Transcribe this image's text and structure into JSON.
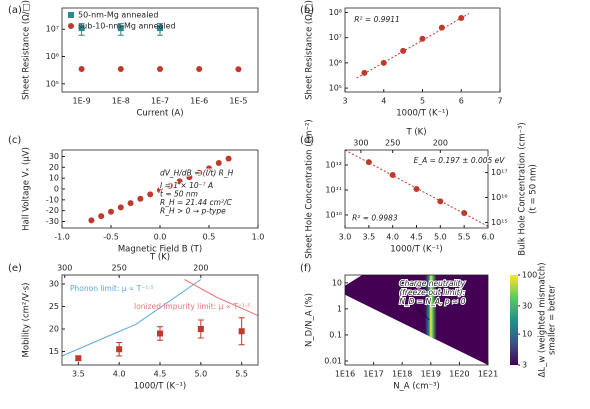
{
  "chart_data": [
    {
      "type": "scatter",
      "panel_label": "(a)",
      "categories": [
        "1E-9",
        "1E-8",
        "1E-7",
        "1E-6",
        "1E-5"
      ],
      "xlabel": "Current (A)",
      "ylabel": "Sheet Resistance (Ω/□)",
      "yscale": "log",
      "ylim": [
        50000,
        60000000
      ],
      "yticks": [
        {
          "value": 100000,
          "label": "10⁵"
        },
        {
          "value": 1000000,
          "label": "10⁶"
        },
        {
          "value": 10000000,
          "label": "10⁷"
        }
      ],
      "legend": "upper left",
      "series": [
        {
          "name": "50-nm-Mg annealed",
          "color": "#2a8a8f",
          "marker": "square",
          "values": [
            11000000,
            11000000,
            11000000,
            null,
            null
          ],
          "errors": [
            5000000,
            5000000,
            5000000,
            null,
            null
          ]
        },
        {
          "name": "sub-10-nm-Mg annealed",
          "color": "#c0392b",
          "marker": "circle",
          "values": [
            350000,
            350000,
            350000,
            350000,
            340000
          ]
        }
      ]
    },
    {
      "type": "scatter",
      "panel_label": "(b)",
      "xlabel": "1000/T (K⁻¹)",
      "ylabel": "Sheet Resistance (Ω/□)",
      "xlim": [
        3,
        7
      ],
      "xticks": [
        3,
        4,
        5,
        6,
        7
      ],
      "yscale": "log",
      "ylim": [
        70000,
        150000000
      ],
      "yticks": [
        {
          "value": 100000,
          "label": "10⁵"
        },
        {
          "value": 1000000,
          "label": "10⁶"
        },
        {
          "value": 10000000,
          "label": "10⁷"
        },
        {
          "value": 100000000,
          "label": "10⁸"
        }
      ],
      "x": [
        3.5,
        4,
        4.5,
        5,
        5.5,
        6
      ],
      "series": [
        {
          "color": "#c0392b",
          "marker": "circle",
          "values": [
            400000,
            1000000,
            3000000,
            9000000,
            25000000,
            60000000
          ]
        }
      ],
      "fit": {
        "color": "#c0392b",
        "x": [
          3.3,
          6.2
        ],
        "values": [
          250000,
          90000000
        ]
      },
      "annotations": [
        "R² = 0.9911"
      ]
    },
    {
      "type": "scatter",
      "panel_label": "(c)",
      "xlabel": "Magnetic Field B (T)",
      "ylabel": "Hall Voltage Vₓ (μV)",
      "xlim": [
        -1,
        1
      ],
      "xticks": [
        {
          "value": -1,
          "label": "-1.0"
        },
        -0.5,
        {
          "value": 0,
          "label": "0.0"
        },
        0.5,
        {
          "value": 1,
          "label": "1.0"
        }
      ],
      "ylim": [
        -36,
        36
      ],
      "yticks": [
        -30,
        -20,
        -10,
        0,
        10,
        20,
        30
      ],
      "x": [
        -0.7,
        -0.6,
        -0.5,
        -0.4,
        -0.3,
        -0.2,
        -0.1,
        0,
        0.1,
        0.2,
        0.3,
        0.4,
        0.5,
        0.6,
        0.7
      ],
      "series": [
        {
          "color": "#c0392b",
          "marker": "circle",
          "values": [
            -29,
            -25,
            -21,
            -17,
            -13,
            -9,
            -5,
            -1,
            3,
            7,
            11,
            15,
            19,
            24,
            28
          ]
        }
      ],
      "annotations": [
        "dV_H/dB = (I/t) R_H",
        "I = 1 × 10⁻⁷ A",
        "t = 50 nm",
        "R_H = 21.44 cm²/C",
        "R_H > 0 → p-type"
      ]
    },
    {
      "type": "scatter",
      "panel_label": "(d)",
      "xlabel": "1000/T (K⁻¹)",
      "ylabel": "Sheet Hole Concentration (cm⁻²)",
      "xlim": [
        3,
        6
      ],
      "xticks": [
        {
          "value": 3,
          "label": "3.0"
        },
        3.5,
        {
          "value": 4,
          "label": "4.0"
        },
        4.5,
        {
          "value": 5,
          "label": "5.0"
        },
        5.5,
        {
          "value": 6,
          "label": "6.0"
        }
      ],
      "yscale": "log",
      "ylim": [
        3000000000,
        4000000000000
      ],
      "yticks": [
        {
          "value": 10000000000,
          "label": "10¹⁰"
        },
        {
          "value": 100000000000,
          "label": "10¹¹"
        },
        {
          "value": 1000000000000,
          "label": "10¹²"
        }
      ],
      "y2label": "Bulk Hole Concentration (cm⁻³)",
      "y2sublabel": "(t = 50 nm)",
      "y2lim": [
        600000000000000,
        800000000000000000
      ],
      "y2ticks": [
        {
          "value": 1000000000000000,
          "label": "10¹⁵"
        },
        {
          "value": 10000000000000000,
          "label": "10¹⁶"
        },
        {
          "value": 100000000000000000,
          "label": "10¹⁷"
        }
      ],
      "x2label": "T (K)",
      "x2ticks": [
        300,
        250,
        200
      ],
      "x": [
        3.5,
        4,
        4.5,
        5,
        5.5
      ],
      "series": [
        {
          "color": "#c0392b",
          "marker": "circle",
          "values": [
            1300000000000,
            400000000000,
            110000000000,
            35000000000,
            12000000000
          ]
        }
      ],
      "fit": {
        "color": "#c0392b",
        "x": [
          3,
          6
        ],
        "values": [
          4000000000000,
          3500000000
        ]
      },
      "annotations": [
        "E_A = 0.197 ± 0.005 eV",
        "R² = 0.9983"
      ]
    },
    {
      "type": "scatter",
      "panel_label": "(e)",
      "xlabel": "1000/T (K⁻¹)",
      "ylabel": "Mobility (cm²/V·s)",
      "xlim": [
        3.3,
        5.7
      ],
      "xticks": [
        3.5,
        {
          "value": 4,
          "label": "4.0"
        },
        4.5,
        {
          "value": 5,
          "label": "5.0"
        },
        5.5
      ],
      "ylim": [
        12,
        32
      ],
      "yticks": [
        15,
        20,
        25,
        30
      ],
      "x2label": "T (K)",
      "x2ticks": [
        300,
        250,
        200
      ],
      "x": [
        3.5,
        4,
        4.5,
        5,
        5.5
      ],
      "series": [
        {
          "color": "#c0392b",
          "marker": "square",
          "values": [
            13.5,
            15.5,
            19,
            20,
            19.5
          ],
          "errors": [
            0.5,
            1.5,
            1.5,
            2,
            3
          ]
        }
      ],
      "curves": [
        {
          "name": "Phonon limit: μ ∝ T⁻¹·⁵",
          "color": "#5aa9d6",
          "x": [
            3.3,
            4.2,
            5.0
          ],
          "values": [
            14,
            21,
            31
          ]
        },
        {
          "name": "Ionized impurity limit: μ ∝ T⁺¹·⁵",
          "color": "#e8777a",
          "x": [
            4.8,
            5.2,
            5.7
          ],
          "values": [
            31,
            27,
            23
          ]
        }
      ]
    },
    {
      "type": "heatmap",
      "panel_label": "(f)",
      "xlabel": "N_A (cm⁻³)",
      "ylabel": "N_D/N_A (%)",
      "xscale": "log",
      "xlim": [
        10000000000000000,
        1000000000000000000000
      ],
      "xticks": [
        {
          "value": 10000000000000000,
          "label": "1E16"
        },
        {
          "value": 100000000000000000,
          "label": "1E17"
        },
        {
          "value": 1000000000000000000,
          "label": "1E18"
        },
        {
          "value": 10000000000000000000,
          "label": "1E19"
        },
        {
          "value": 100000000000000000000,
          "label": "1E20"
        },
        {
          "value": 1000000000000000000000,
          "label": "1E21"
        }
      ],
      "yscale": "log",
      "ylim": [
        0.007,
        20
      ],
      "yticks": [
        0.01,
        0.1,
        1,
        10
      ],
      "colormap": "viridis",
      "clim": [
        3,
        100
      ],
      "cticks": [
        3,
        10,
        30,
        100
      ],
      "colorbar_label": "ΔL_w (weighted mismatch)",
      "colorbar_sublabel": "smaller = better",
      "annotations": [
        "Charge neutrality",
        "(freeze-out limit):",
        "N_D = N_A, p ≈ 0"
      ]
    }
  ]
}
